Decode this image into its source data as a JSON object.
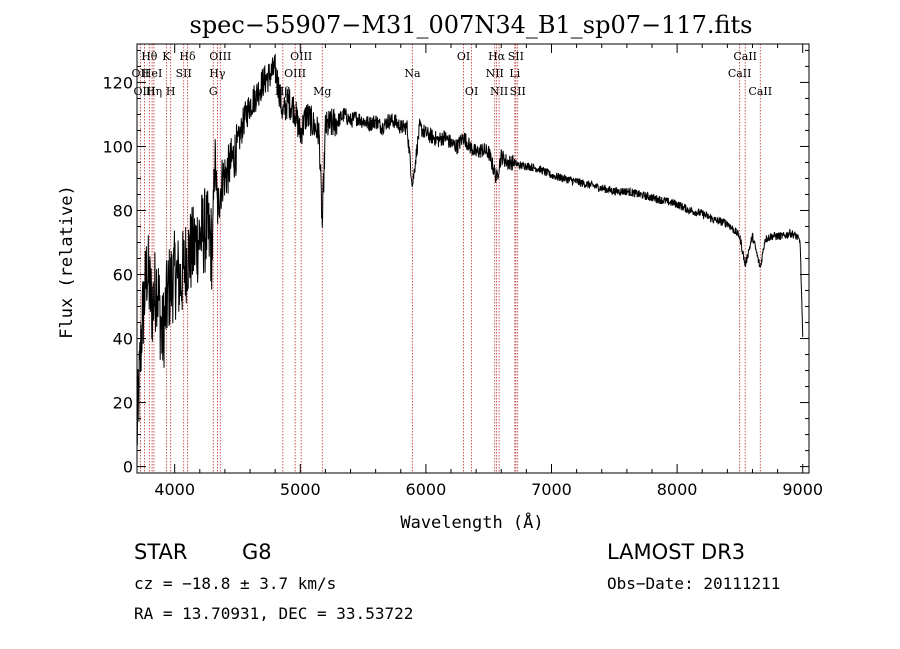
{
  "chart_data": {
    "type": "line",
    "title": "spec−55907−M31_007N34_B1_sp07−117.fits",
    "xlabel": "Wavelength (Å)",
    "ylabel": "Flux (relative)",
    "xlim": [
      3700,
      9050
    ],
    "ylim": [
      -2,
      132
    ],
    "x_ticks": [
      4000,
      5000,
      6000,
      7000,
      8000,
      9000
    ],
    "y_ticks": [
      0,
      20,
      40,
      60,
      80,
      100,
      120
    ],
    "series": [
      {
        "name": "spectrum",
        "color": "#000000",
        "x": [
          3700,
          3740,
          3780,
          3820,
          3860,
          3900,
          3950,
          4000,
          4050,
          4100,
          4150,
          4200,
          4250,
          4300,
          4320,
          4340,
          4380,
          4420,
          4460,
          4500,
          4550,
          4600,
          4650,
          4700,
          4750,
          4800,
          4830,
          4861,
          4900,
          4950,
          5000,
          5050,
          5100,
          5150,
          5175,
          5200,
          5250,
          5300,
          5350,
          5400,
          5450,
          5500,
          5550,
          5600,
          5650,
          5700,
          5750,
          5800,
          5850,
          5893,
          5950,
          6000,
          6050,
          6100,
          6150,
          6200,
          6250,
          6300,
          6350,
          6400,
          6450,
          6500,
          6563,
          6600,
          6650,
          6700,
          6750,
          6800,
          6900,
          7000,
          7100,
          7200,
          7300,
          7400,
          7500,
          7600,
          7700,
          7800,
          7900,
          8000,
          8100,
          8200,
          8300,
          8400,
          8498,
          8542,
          8600,
          8662,
          8700,
          8750,
          8800,
          8850,
          8900,
          8950,
          8980,
          9000
        ],
        "values": [
          10,
          45,
          62,
          50,
          58,
          40,
          55,
          60,
          58,
          66,
          68,
          72,
          74,
          68,
          98,
          80,
          90,
          92,
          96,
          100,
          108,
          113,
          116,
          120,
          122,
          124,
          118,
          110,
          114,
          112,
          104,
          110,
          107,
          104,
          75,
          106,
          107,
          108,
          110,
          108,
          109,
          108,
          107,
          108,
          106,
          108,
          108,
          106,
          106,
          88,
          106,
          104,
          103,
          102,
          103,
          101,
          100,
          103,
          100,
          98,
          99,
          98,
          90,
          97,
          95,
          95,
          94,
          94,
          93,
          91,
          90,
          89,
          88,
          87,
          86,
          86,
          85,
          84,
          83,
          82,
          80,
          79,
          77,
          76,
          72,
          63,
          72,
          62,
          71,
          72,
          72,
          72,
          73,
          72,
          70,
          40
        ]
      }
    ],
    "lines": [
      {
        "label": "Hθ",
        "x": 3798,
        "row": 0
      },
      {
        "label": "OII",
        "x": 3727,
        "row": 1
      },
      {
        "label": "OIII",
        "x": 3760,
        "row": 2
      },
      {
        "label": "HeI",
        "x": 3820,
        "row": 1
      },
      {
        "label": "Hη",
        "x": 3835,
        "row": 2
      },
      {
        "label": "K",
        "x": 3934,
        "row": 0
      },
      {
        "label": "H",
        "x": 3968,
        "row": 2
      },
      {
        "label": "SII",
        "x": 4072,
        "row": 1
      },
      {
        "label": "Hδ",
        "x": 4102,
        "row": 0
      },
      {
        "label": "OIII",
        "x": 4363,
        "row": 0
      },
      {
        "label": "Hγ",
        "x": 4340,
        "row": 1
      },
      {
        "label": "G",
        "x": 4307,
        "row": 2
      },
      {
        "label": "Hβ",
        "x": 4861,
        "row": 2
      },
      {
        "label": "OIII",
        "x": 5007,
        "row": 0
      },
      {
        "label": "OIII",
        "x": 4959,
        "row": 1
      },
      {
        "label": "Mg",
        "x": 5175,
        "row": 2
      },
      {
        "label": "Na",
        "x": 5893,
        "row": 1
      },
      {
        "label": "OI",
        "x": 6300,
        "row": 0
      },
      {
        "label": "OI",
        "x": 6364,
        "row": 2
      },
      {
        "label": "Hα",
        "x": 6563,
        "row": 0
      },
      {
        "label": "NII",
        "x": 6548,
        "row": 1
      },
      {
        "label": "NII",
        "x": 6583,
        "row": 2
      },
      {
        "label": "SII",
        "x": 6716,
        "row": 0
      },
      {
        "label": "Li",
        "x": 6708,
        "row": 1
      },
      {
        "label": "SII",
        "x": 6731,
        "row": 2
      },
      {
        "label": "CaII",
        "x": 8542,
        "row": 0
      },
      {
        "label": "CaII",
        "x": 8498,
        "row": 1
      },
      {
        "label": "CaII",
        "x": 8662,
        "row": 2
      }
    ]
  },
  "info": {
    "class": "STAR",
    "subclass": "G8",
    "survey": "LAMOST DR3",
    "cz": "cz = −18.8 ± 3.7 km/s",
    "obs_date": "Obs−Date: 20111211",
    "radec": "RA =  13.70931, DEC =  33.53722"
  },
  "colors": {
    "spectrum": "#000000",
    "line_markers": "#c03030",
    "axes": "#000000"
  }
}
